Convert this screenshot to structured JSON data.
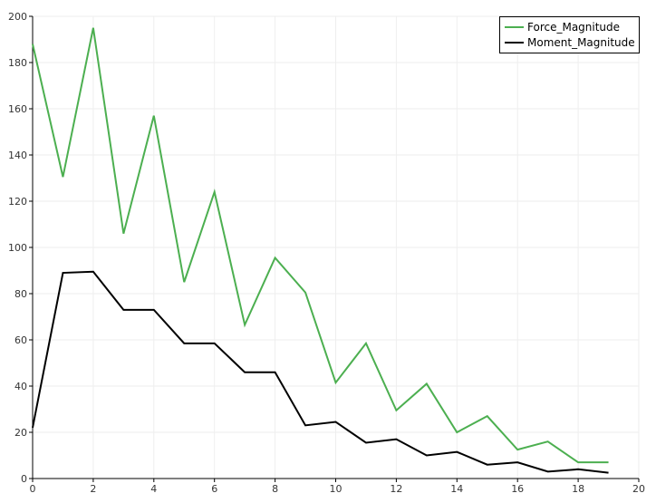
{
  "chart_data": {
    "type": "line",
    "x": [
      0,
      1,
      2,
      3,
      4,
      5,
      6,
      7,
      8,
      9,
      10,
      11,
      12,
      13,
      14,
      15,
      16,
      17,
      18,
      19
    ],
    "series": [
      {
        "name": "Force_Magnitude",
        "color": "#4caf50",
        "values": [
          188,
          130.5,
          195,
          106,
          157,
          85,
          124,
          66.5,
          95.5,
          80.5,
          41.5,
          58.5,
          29.5,
          41,
          20,
          27,
          12.5,
          16,
          7,
          7
        ]
      },
      {
        "name": "Moment_Magnitude",
        "color": "#000000",
        "values": [
          22,
          89,
          89.5,
          73,
          73,
          58.5,
          58.5,
          46,
          46,
          23,
          24.5,
          15.5,
          17,
          10,
          11.5,
          6,
          7,
          3,
          4,
          2.5
        ]
      }
    ],
    "xlim": [
      0,
      20
    ],
    "ylim": [
      0,
      200
    ],
    "xticks": [
      "0",
      "2",
      "4",
      "6",
      "8",
      "10",
      "12",
      "14",
      "16",
      "18",
      "20"
    ],
    "yticks": [
      "0",
      "20",
      "40",
      "60",
      "80",
      "100",
      "120",
      "140",
      "160",
      "180",
      "200"
    ],
    "grid": true,
    "legend_position": "top-right"
  }
}
